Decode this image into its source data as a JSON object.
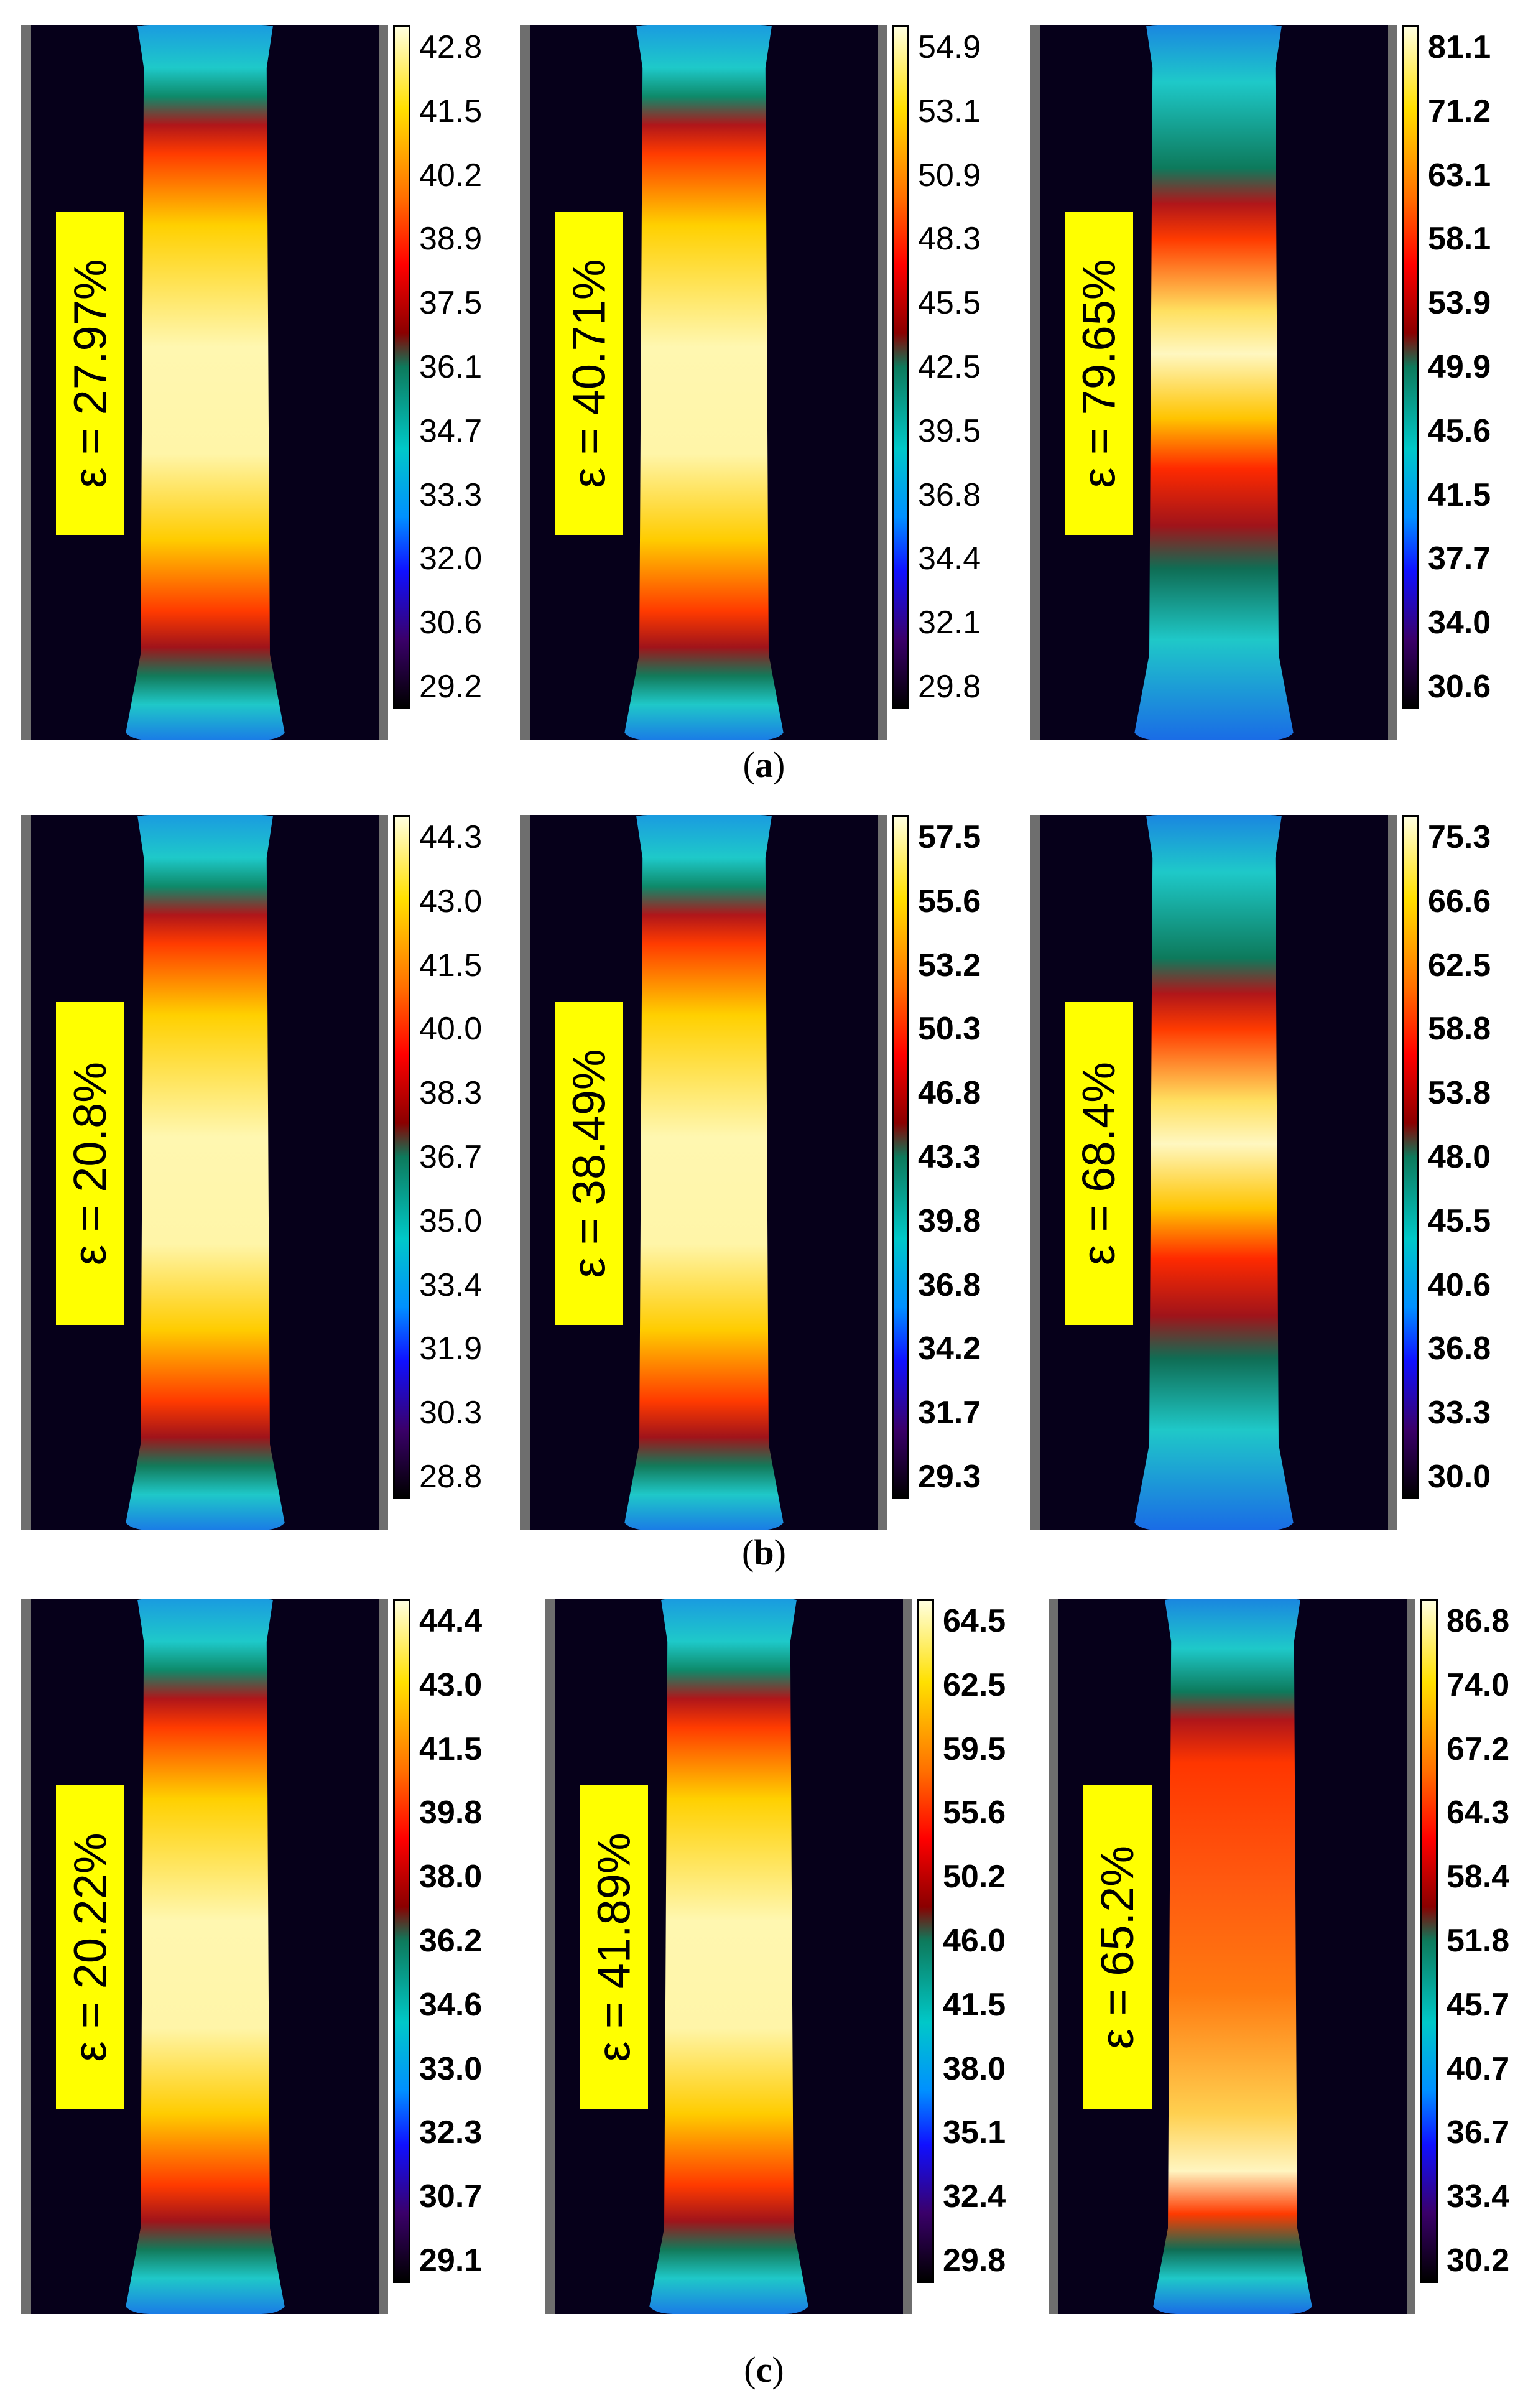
{
  "rows": [
    {
      "caption": "a",
      "panels": [
        {
          "strain": "ε = 27.97%",
          "ticks": [
            "42.8",
            "41.5",
            "40.2",
            "38.9",
            "37.5",
            "36.1",
            "34.7",
            "33.3",
            "32.0",
            "30.6",
            "29.2"
          ]
        },
        {
          "strain": "ε = 40.71%",
          "ticks": [
            "54.9",
            "53.1",
            "50.9",
            "48.3",
            "45.5",
            "42.5",
            "39.5",
            "36.8",
            "34.4",
            "32.1",
            "29.8"
          ]
        },
        {
          "strain": "ε = 79.65%",
          "ticks": [
            "81.1",
            "71.2",
            "63.1",
            "58.1",
            "53.9",
            "49.9",
            "45.6",
            "41.5",
            "37.7",
            "34.0",
            "30.6"
          ]
        }
      ]
    },
    {
      "caption": "b",
      "panels": [
        {
          "strain": "ε = 20.8%",
          "ticks": [
            "44.3",
            "43.0",
            "41.5",
            "40.0",
            "38.3",
            "36.7",
            "35.0",
            "33.4",
            "31.9",
            "30.3",
            "28.8"
          ]
        },
        {
          "strain": "ε = 38.49%",
          "ticks": [
            "57.5",
            "55.6",
            "53.2",
            "50.3",
            "46.8",
            "43.3",
            "39.8",
            "36.8",
            "34.2",
            "31.7",
            "29.3"
          ]
        },
        {
          "strain": "ε = 68.4%",
          "ticks": [
            "75.3",
            "66.6",
            "62.5",
            "58.8",
            "53.8",
            "48.0",
            "45.5",
            "40.6",
            "36.8",
            "33.3",
            "30.0"
          ]
        }
      ]
    },
    {
      "caption": "c",
      "panels": [
        {
          "strain": "ε = 20.22%",
          "ticks": [
            "44.4",
            "43.0",
            "41.5",
            "39.8",
            "38.0",
            "36.2",
            "34.6",
            "33.0",
            "32.3",
            "30.7",
            "29.1"
          ]
        },
        {
          "strain": "ε = 41.89%",
          "ticks": [
            "64.5",
            "62.5",
            "59.5",
            "55.6",
            "50.2",
            "46.0",
            "41.5",
            "38.0",
            "35.1",
            "32.4",
            "29.8"
          ]
        },
        {
          "strain": "ε = 65.2%",
          "ticks": [
            "86.8",
            "74.0",
            "67.2",
            "64.3",
            "58.4",
            "51.8",
            "45.7",
            "40.7",
            "36.7",
            "33.4",
            "30.2"
          ]
        }
      ]
    }
  ]
}
